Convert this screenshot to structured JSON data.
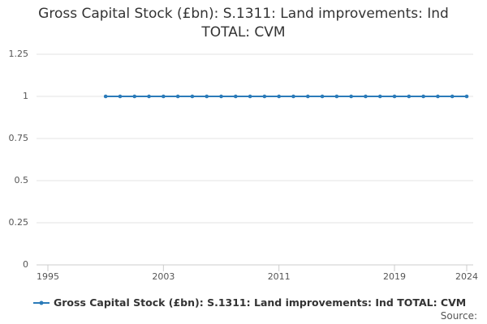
{
  "chart_data": {
    "type": "line",
    "title": "Gross Capital Stock (£bn): S.1311: Land improvements: Ind TOTAL: CVM",
    "x": [
      1999,
      2000,
      2001,
      2002,
      2003,
      2004,
      2005,
      2006,
      2007,
      2008,
      2009,
      2010,
      2011,
      2012,
      2013,
      2014,
      2015,
      2016,
      2017,
      2018,
      2019,
      2020,
      2021,
      2022,
      2023,
      2024
    ],
    "series": [
      {
        "name": "Gross Capital Stock (£bn): S.1311: Land improvements: Ind TOTAL: CVM",
        "color": "#2b7bb9",
        "values": [
          1,
          1,
          1,
          1,
          1,
          1,
          1,
          1,
          1,
          1,
          1,
          1,
          1,
          1,
          1,
          1,
          1,
          1,
          1,
          1,
          1,
          1,
          1,
          1,
          1,
          1
        ]
      }
    ],
    "xlim": [
      1995,
      2024
    ],
    "xticks": [
      1995,
      2003,
      2011,
      2019,
      2024
    ],
    "ylim": [
      0,
      1.25
    ],
    "yticks": [
      0,
      0.25,
      0.5,
      0.75,
      1,
      1.25
    ],
    "grid": true,
    "source_label": "Source:"
  }
}
